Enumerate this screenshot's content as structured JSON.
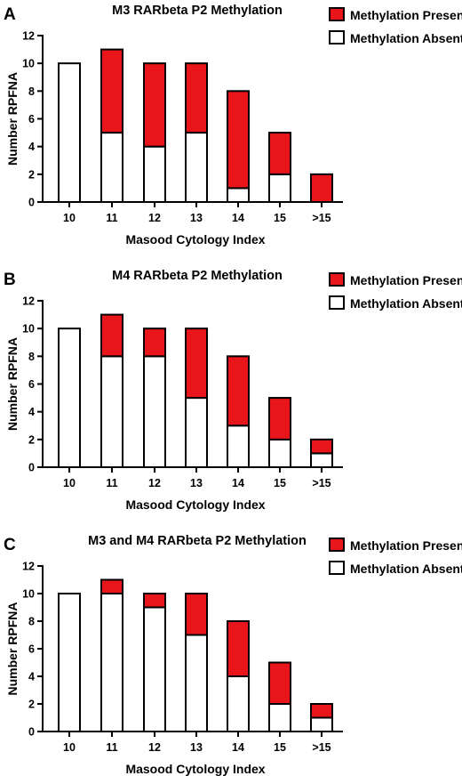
{
  "chart_data": [
    {
      "type": "bar",
      "stacked": true,
      "panel": "A",
      "title": "M3 RARbeta P2 Methylation",
      "xlabel": "Masood Cytology Index",
      "ylabel": "Number RPFNA",
      "ylim": [
        0,
        12
      ],
      "yticks": [
        "0",
        "2",
        "4",
        "6",
        "8",
        "10",
        "12"
      ],
      "categories": [
        "10",
        "11",
        "12",
        "13",
        "14",
        "15",
        ">15"
      ],
      "series": [
        {
          "name": "Methylation Absent",
          "color": "#ffffff",
          "values": [
            10,
            5,
            4,
            5,
            1,
            2,
            0
          ]
        },
        {
          "name": "Methylation Present",
          "color": "#e8161b",
          "values": [
            0,
            6,
            6,
            5,
            7,
            3,
            2
          ]
        }
      ],
      "legend_placement": "top-right",
      "grid": false
    },
    {
      "type": "bar",
      "stacked": true,
      "panel": "B",
      "title": "M4 RARbeta P2 Methylation",
      "xlabel": "Masood Cytology Index",
      "ylabel": "Number RPFNA",
      "ylim": [
        0,
        12
      ],
      "yticks": [
        "0",
        "2",
        "4",
        "6",
        "8",
        "10",
        "12"
      ],
      "categories": [
        "10",
        "11",
        "12",
        "13",
        "14",
        "15",
        ">15"
      ],
      "series": [
        {
          "name": "Methylation Absent",
          "color": "#ffffff",
          "values": [
            10,
            8,
            8,
            5,
            3,
            2,
            1
          ]
        },
        {
          "name": "Methylation Present",
          "color": "#e8161b",
          "values": [
            0,
            3,
            2,
            5,
            5,
            3,
            1
          ]
        }
      ],
      "legend_placement": "top-right",
      "grid": false
    },
    {
      "type": "bar",
      "stacked": true,
      "panel": "C",
      "title": "M3 and M4 RARbeta P2 Methylation",
      "xlabel": "Masood Cytology Index",
      "ylabel": "Number RPFNA",
      "ylim": [
        0,
        12
      ],
      "yticks": [
        "0",
        "2",
        "4",
        "6",
        "8",
        "10",
        "12"
      ],
      "categories": [
        "10",
        "11",
        "12",
        "13",
        "14",
        "15",
        ">15"
      ],
      "series": [
        {
          "name": "Methylation Absent",
          "color": "#ffffff",
          "values": [
            10,
            10,
            9,
            7,
            4,
            2,
            1
          ]
        },
        {
          "name": "Methylation Present",
          "color": "#e8161b",
          "values": [
            0,
            1,
            1,
            3,
            4,
            3,
            1
          ]
        }
      ],
      "legend_placement": "top-right",
      "grid": false
    }
  ]
}
